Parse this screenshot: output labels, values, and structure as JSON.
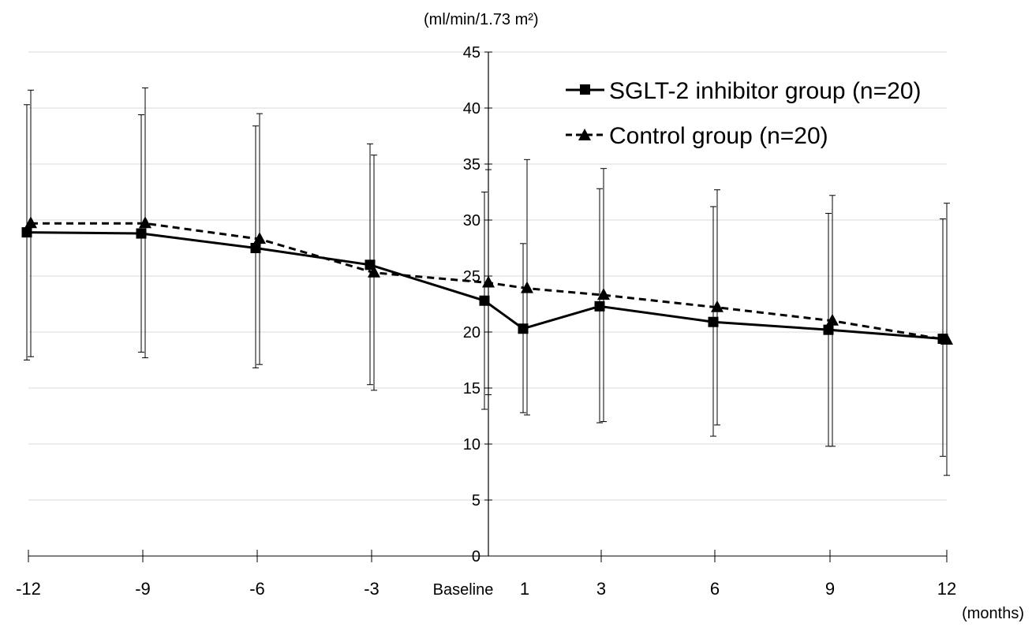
{
  "chart_data": {
    "type": "line",
    "ylabel": "(ml/min/1.73 m²)",
    "xunit": "(months)",
    "ylim": [
      0,
      45
    ],
    "yticks": [
      0,
      5,
      10,
      15,
      20,
      25,
      30,
      35,
      40,
      45
    ],
    "grid": true,
    "legend_position": "top-right",
    "x_labels": [
      {
        "x": -12,
        "label": "-12"
      },
      {
        "x": -9,
        "label": "-9"
      },
      {
        "x": -6,
        "label": "-6"
      },
      {
        "x": -3,
        "label": "-3"
      },
      {
        "x": 0,
        "label": "Baseline"
      },
      {
        "x": 1,
        "label": "1"
      },
      {
        "x": 3,
        "label": "3"
      },
      {
        "x": 6,
        "label": "6"
      },
      {
        "x": 9,
        "label": "9"
      },
      {
        "x": 12,
        "label": "12"
      }
    ],
    "series": [
      {
        "name": "SGLT-2 inhibitor group (n=20)",
        "line_style": "solid",
        "marker": "square",
        "color": "#000000",
        "points": [
          {
            "x": -12,
            "y": 28.9,
            "err_low": 17.5,
            "err_high": 40.3
          },
          {
            "x": -9,
            "y": 28.8,
            "err_low": 18.2,
            "err_high": 39.4
          },
          {
            "x": -6,
            "y": 27.5,
            "err_low": 16.8,
            "err_high": 38.4
          },
          {
            "x": -3,
            "y": 26.0,
            "err_low": 15.3,
            "err_high": 36.8
          },
          {
            "x": 0,
            "y": 22.8,
            "err_low": 13.1,
            "err_high": 32.5
          },
          {
            "x": 1,
            "y": 20.3,
            "err_low": 12.8,
            "err_high": 27.9
          },
          {
            "x": 3,
            "y": 22.3,
            "err_low": 11.9,
            "err_high": 32.8
          },
          {
            "x": 6,
            "y": 20.9,
            "err_low": 10.7,
            "err_high": 31.2
          },
          {
            "x": 9,
            "y": 20.2,
            "err_low": 9.8,
            "err_high": 30.6
          },
          {
            "x": 12,
            "y": 19.4,
            "err_low": 8.9,
            "err_high": 30.1
          }
        ]
      },
      {
        "name": "Control group (n=20)",
        "line_style": "dashed",
        "marker": "triangle",
        "color": "#000000",
        "points": [
          {
            "x": -12,
            "y": 29.7,
            "err_low": 17.8,
            "err_high": 41.6
          },
          {
            "x": -9,
            "y": 29.7,
            "err_low": 17.7,
            "err_high": 41.8
          },
          {
            "x": -6,
            "y": 28.3,
            "err_low": 17.1,
            "err_high": 39.5
          },
          {
            "x": -3,
            "y": 25.3,
            "err_low": 14.8,
            "err_high": 35.8
          },
          {
            "x": 0,
            "y": 24.4,
            "err_low": 14.4,
            "err_high": 34.5
          },
          {
            "x": 1,
            "y": 23.9,
            "err_low": 12.6,
            "err_high": 35.4
          },
          {
            "x": 3,
            "y": 23.3,
            "err_low": 12.0,
            "err_high": 34.6
          },
          {
            "x": 6,
            "y": 22.2,
            "err_low": 11.7,
            "err_high": 32.7
          },
          {
            "x": 9,
            "y": 21.0,
            "err_low": 9.8,
            "err_high": 32.2
          },
          {
            "x": 12,
            "y": 19.3,
            "err_low": 7.2,
            "err_high": 31.5
          }
        ]
      }
    ]
  }
}
